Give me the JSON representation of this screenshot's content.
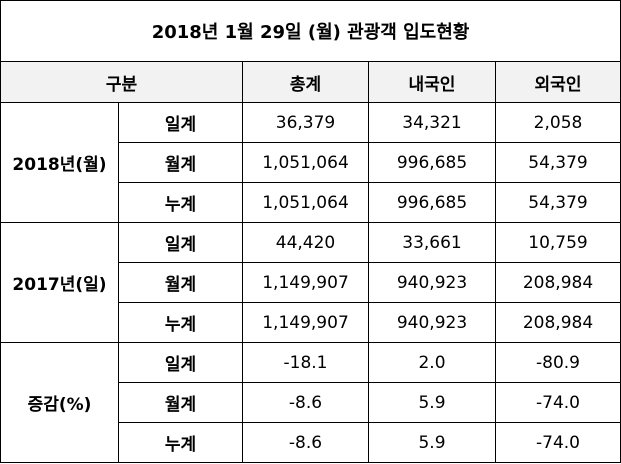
{
  "title": "2018년 1월 29일 (월) 관광객 입도현황",
  "header": [
    "구분",
    "총계",
    "내국인",
    "외국인"
  ],
  "groups": [
    {
      "label": "2018년(월)",
      "rows": [
        {
          "label": "일계",
          "values": [
            "36,379",
            "34,321",
            "2,058"
          ]
        },
        {
          "label": "월계",
          "values": [
            "1,051,064",
            "996,685",
            "54,379"
          ]
        },
        {
          "label": "누계",
          "values": [
            "1,051,064",
            "996,685",
            "54,379"
          ]
        }
      ]
    },
    {
      "label": "2017년(일)",
      "rows": [
        {
          "label": "일계",
          "values": [
            "44,420",
            "33,661",
            "10,759"
          ]
        },
        {
          "label": "월계",
          "values": [
            "1,149,907",
            "940,923",
            "208,984"
          ]
        },
        {
          "label": "누계",
          "values": [
            "1,149,907",
            "940,923",
            "208,984"
          ]
        }
      ]
    },
    {
      "label": "증감(%)",
      "rows": [
        {
          "label": "일계",
          "values": [
            "-18.1",
            "2.0",
            "-80.9"
          ]
        },
        {
          "label": "월계",
          "values": [
            "-8.6",
            "5.9",
            "-74.0"
          ]
        },
        {
          "label": "누계",
          "values": [
            "-8.6",
            "5.9",
            "-74.0"
          ]
        }
      ]
    }
  ]
}
